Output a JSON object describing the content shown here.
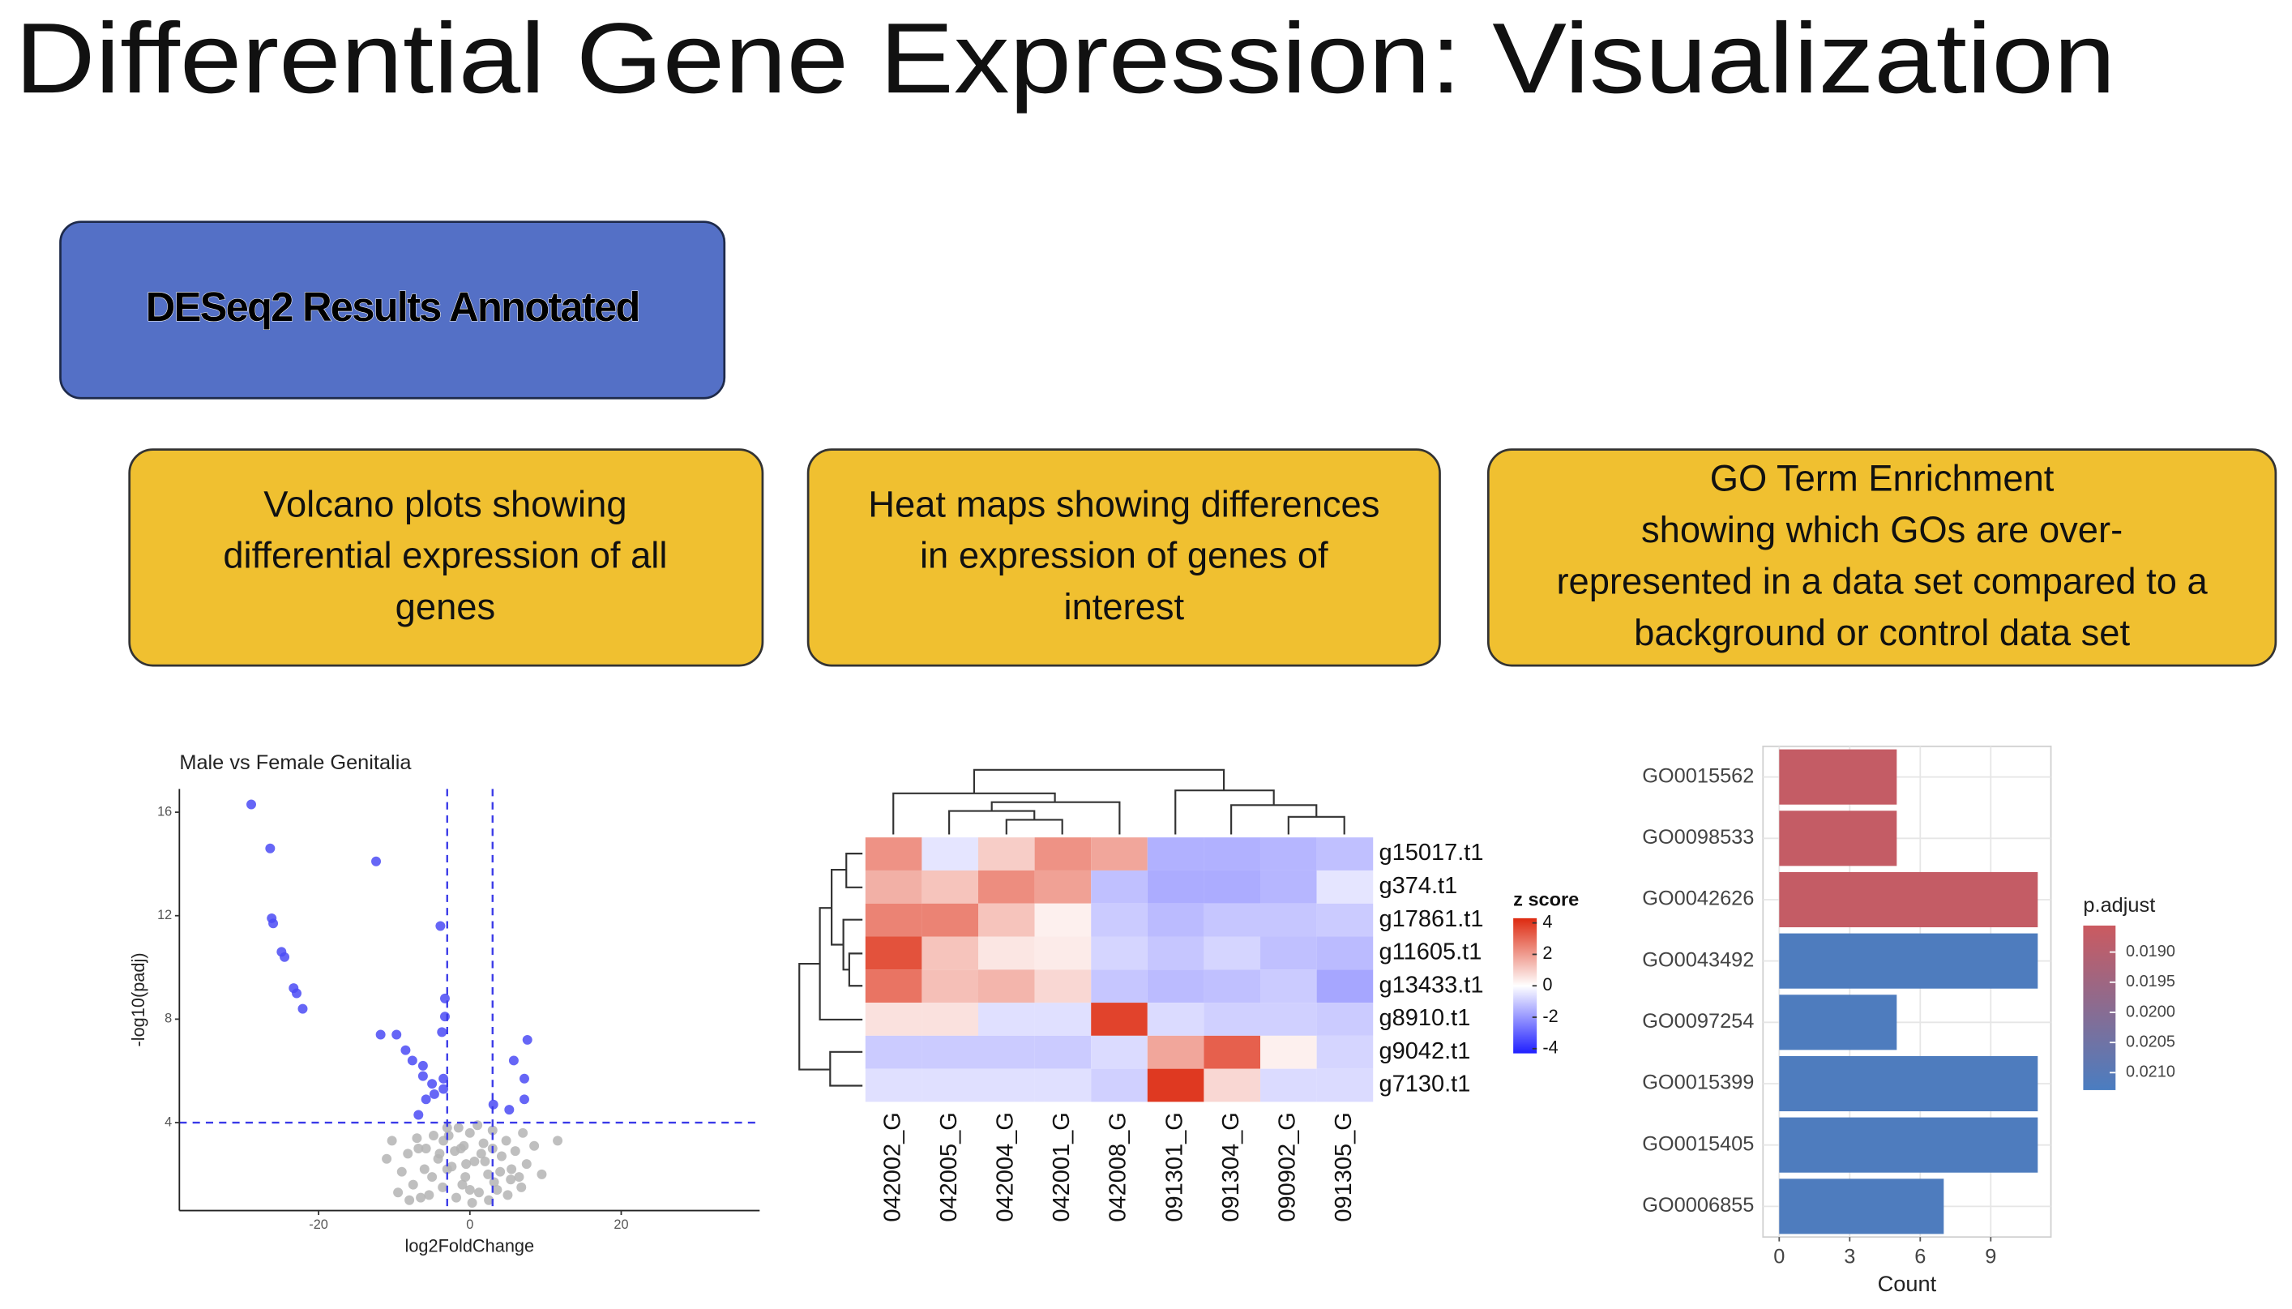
{
  "title": "Differential Gene Expression: Visualization",
  "header_box": {
    "label": "DESeq2 Results Annotated"
  },
  "boxes": [
    {
      "lines": [
        "Volcano plots showing",
        "differential expression of all",
        "genes"
      ]
    },
    {
      "lines": [
        "Heat maps showing differences",
        "in expression of genes of",
        "interest"
      ]
    },
    {
      "lines": [
        "GO Term Enrichment",
        "showing which GOs are over-",
        "represented in a data set compared to a",
        "background or control data set"
      ]
    }
  ],
  "chart_data": [
    {
      "type": "scatter",
      "title": "Male vs Female Genitalia",
      "xlabel": "log2FoldChange",
      "ylabel": "-log10(padj)",
      "xlim": [
        -38.4,
        38.3
      ],
      "ylim": [
        0.6,
        16.9
      ],
      "xticks": [
        -20,
        0,
        20
      ],
      "yticks": [
        4,
        8,
        12,
        16
      ],
      "threshold_x": [
        -3,
        3
      ],
      "threshold_y": 4,
      "threshold_color": "#3a3ae8",
      "grid": false,
      "series": [
        {
          "color": "#b4b4b4",
          "x": [
            -10.3,
            -9,
            -8.2,
            -7.5,
            -6.8,
            -6,
            -5.4,
            -4.8,
            -4.2,
            -3.6,
            -3,
            -2.4,
            -1.8,
            -1.2,
            -0.6,
            0,
            0.6,
            1.2,
            1.8,
            2.4,
            3,
            3.6,
            4.2,
            4.8,
            5.4,
            6,
            6.8,
            7.5,
            8.5,
            11.6,
            -11,
            -8,
            -5,
            -2,
            1,
            4,
            7,
            -9.5,
            -6.5,
            -3.5,
            -0.5,
            2.5,
            5.5,
            -7,
            -4,
            -1,
            2,
            5,
            -2.8,
            0.3,
            3.2,
            -5.8,
            6.5,
            -1.5,
            1.5,
            9.5,
            -3,
            0,
            3,
            -0.8
          ],
          "y": [
            3.3,
            2.1,
            2.8,
            1.6,
            3.0,
            2.2,
            1.2,
            3.5,
            2.6,
            1.5,
            3.8,
            2.3,
            1.1,
            3.0,
            1.9,
            3.6,
            2.5,
            1.3,
            3.2,
            2.0,
            3.7,
            1.4,
            2.7,
            3.3,
            1.8,
            2.9,
            1.5,
            2.4,
            3.1,
            3.3,
            2.6,
            1.0,
            1.9,
            2.9,
            3.9,
            2.1,
            3.6,
            1.3,
            1.1,
            3.3,
            2.4,
            1.0,
            2.2,
            3.4,
            2.8,
            1.6,
            2.5,
            1.2,
            3.5,
            0.9,
            1.7,
            3.0,
            1.9,
            3.8,
            2.8,
            2.0,
            2.2,
            1.4,
            3.0,
            3.1
          ]
        },
        {
          "color": "#4b4bf5",
          "x": [
            -28.9,
            -26.4,
            -26.2,
            -26.0,
            -24.9,
            -24.5,
            -23.3,
            -22.9,
            -22.1,
            -12.4,
            -3.9,
            -3.3,
            -3.3,
            -3.7,
            -11.8,
            -9.7,
            -8.5,
            -7.6,
            -6.2,
            -6.2,
            -5.0,
            -4.7,
            -5.8,
            -3.5,
            -3.5,
            -6.8,
            7.6,
            5.8,
            7.2,
            7.2,
            5.2,
            3.1
          ],
          "y": [
            16.3,
            14.6,
            11.9,
            11.7,
            10.6,
            10.4,
            9.2,
            9.0,
            8.4,
            14.1,
            11.6,
            8.8,
            8.1,
            7.5,
            7.4,
            7.4,
            6.8,
            6.4,
            6.2,
            5.8,
            5.5,
            5.1,
            4.9,
            5.7,
            5.3,
            4.3,
            7.2,
            6.4,
            5.7,
            4.9,
            4.5,
            4.7
          ]
        }
      ]
    },
    {
      "type": "heatmap",
      "rows": [
        "g15017.t1",
        "g374.t1",
        "g17861.t1",
        "g11605.t1",
        "g13433.t1",
        "g8910.t1",
        "g9042.t1",
        "g7130.t1"
      ],
      "columns": [
        "042002_G",
        "042005_G",
        "042004_G",
        "042001_G",
        "042008_G",
        "091301_G",
        "091304_G",
        "090902_G",
        "091305_G"
      ],
      "values": [
        [
          2.2,
          -0.5,
          1.0,
          2.2,
          1.8,
          -1.5,
          -1.5,
          -1.4,
          -1.2
        ],
        [
          1.6,
          1.2,
          2.3,
          1.9,
          -1.2,
          -1.6,
          -1.6,
          -1.4,
          -0.5
        ],
        [
          2.5,
          2.5,
          1.2,
          0.3,
          -1.0,
          -1.3,
          -1.1,
          -1.1,
          -1.0
        ],
        [
          3.5,
          1.2,
          0.5,
          0.4,
          -0.8,
          -1.1,
          -0.8,
          -1.2,
          -1.3
        ],
        [
          2.8,
          1.3,
          1.5,
          0.8,
          -1.1,
          -1.3,
          -1.2,
          -1.0,
          -1.7
        ],
        [
          0.6,
          0.6,
          -0.6,
          -0.6,
          3.8,
          -0.7,
          -0.9,
          -0.9,
          -1.0
        ],
        [
          -1.0,
          -1.0,
          -1.0,
          -1.0,
          -0.7,
          1.8,
          3.2,
          0.3,
          -0.8
        ],
        [
          -0.6,
          -0.6,
          -0.6,
          -0.6,
          -0.9,
          4.0,
          0.8,
          -0.7,
          -0.7
        ]
      ],
      "colorscale": [
        "#1f1fff",
        "#ffffff",
        "#dd2a10"
      ],
      "clim": [
        -4.3,
        4.3
      ],
      "colorbar_title": "z score",
      "colorbar_ticks": [
        4,
        2,
        0,
        -2,
        -4
      ]
    },
    {
      "type": "barh",
      "categories": [
        "GO0015562",
        "GO0098533",
        "GO0042626",
        "GO0043492",
        "GO0097254",
        "GO0015399",
        "GO0015405",
        "GO0006855"
      ],
      "values": [
        5,
        5,
        11,
        11,
        5,
        11,
        11,
        7
      ],
      "p_adjust": [
        0.0187,
        0.0187,
        0.0187,
        0.0212,
        0.0212,
        0.0212,
        0.0212,
        0.0212
      ],
      "xlabel": "Count",
      "xlim": [
        -0.69,
        11.56
      ],
      "xticks": [
        0,
        3,
        6,
        9
      ],
      "grid": true,
      "colorscale": [
        "#cb5a60",
        "#4a7dc1"
      ],
      "clim": [
        0.01856,
        0.02129
      ],
      "colorbar_title": "p.adjust",
      "colorbar_ticks": [
        {
          "value": 0.019,
          "label": "0.0190"
        },
        {
          "value": 0.0195,
          "label": "0.0195"
        },
        {
          "value": 0.02,
          "label": "0.0200"
        },
        {
          "value": 0.0205,
          "label": "0.0205"
        },
        {
          "value": 0.021,
          "label": "0.0210"
        }
      ]
    }
  ]
}
